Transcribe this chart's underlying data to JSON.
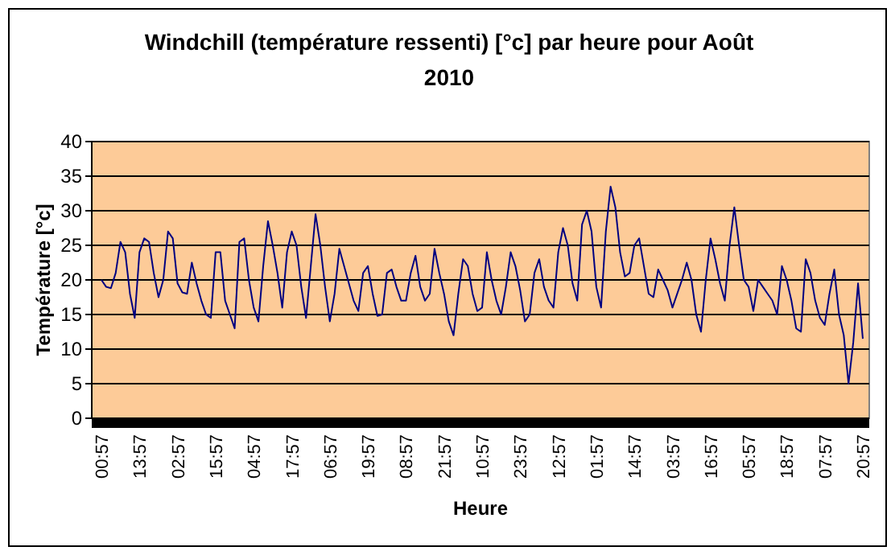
{
  "chart_data": {
    "type": "line",
    "title": "Windchill (température ressenti) [°c] par heure pour Août 2010",
    "xlabel": "Heure",
    "ylabel": "Température [°c]",
    "categories": [
      "00:57",
      null,
      null,
      null,
      null,
      null,
      null,
      null,
      "13:57",
      null,
      null,
      null,
      null,
      null,
      null,
      null,
      "02:57",
      null,
      null,
      null,
      null,
      null,
      null,
      null,
      "15:57",
      null,
      null,
      null,
      null,
      null,
      null,
      null,
      "04:57",
      null,
      null,
      null,
      null,
      null,
      null,
      null,
      "17:57",
      null,
      null,
      null,
      null,
      null,
      null,
      null,
      "06:57",
      null,
      null,
      null,
      null,
      null,
      null,
      null,
      "19:57",
      null,
      null,
      null,
      null,
      null,
      null,
      null,
      "08:57",
      null,
      null,
      null,
      null,
      null,
      null,
      null,
      "21:57",
      null,
      null,
      null,
      null,
      null,
      null,
      null,
      "10:57",
      null,
      null,
      null,
      null,
      null,
      null,
      null,
      "23:57",
      null,
      null,
      null,
      null,
      null,
      null,
      null,
      "12:57",
      null,
      null,
      null,
      null,
      null,
      null,
      null,
      "01:57",
      null,
      null,
      null,
      null,
      null,
      null,
      null,
      "14:57",
      null,
      null,
      null,
      null,
      null,
      null,
      null,
      "03:57",
      null,
      null,
      null,
      null,
      null,
      null,
      null,
      "16:57",
      null,
      null,
      null,
      null,
      null,
      null,
      null,
      "05:57",
      null,
      null,
      null,
      null,
      null,
      null,
      null,
      "18:57",
      null,
      null,
      null,
      null,
      null,
      null,
      null,
      "07:57",
      null,
      null,
      null,
      null,
      null,
      null,
      null,
      "20:57"
    ],
    "series": [
      {
        "color": "#000080",
        "values": [
          20,
          19,
          18.8,
          21,
          25.5,
          24,
          18,
          14.5,
          24,
          26,
          25.5,
          21,
          17.5,
          20,
          27,
          26,
          19.5,
          18.2,
          18,
          22.5,
          19.5,
          17,
          15,
          14.5,
          24,
          24,
          17,
          15,
          13,
          25.5,
          26,
          20,
          16,
          14,
          22,
          28.5,
          25,
          21,
          16,
          24,
          27,
          25,
          19,
          14.5,
          22,
          29.5,
          25,
          19,
          14,
          18,
          24.5,
          22,
          19.5,
          17,
          15.5,
          21,
          22,
          18,
          14.8,
          15,
          21,
          21.5,
          19,
          17,
          17,
          21,
          23.5,
          19,
          17,
          18,
          24.5,
          21,
          18,
          14,
          12,
          18,
          23,
          22,
          18,
          15.5,
          16,
          24,
          20,
          17,
          15,
          19,
          24,
          22,
          18.5,
          14,
          15,
          21,
          23,
          19,
          17,
          16,
          24,
          27.5,
          25,
          19.5,
          17,
          28,
          30,
          27,
          19,
          16,
          27,
          33.5,
          30.5,
          24,
          20.5,
          21,
          25,
          26,
          22,
          18,
          17.5,
          21.5,
          20,
          18.5,
          16,
          18,
          20,
          22.5,
          20,
          15,
          12.5,
          20,
          26,
          23,
          19.5,
          17,
          25,
          30.5,
          25,
          20,
          19,
          15.5,
          20,
          19,
          18,
          17,
          15,
          22,
          20,
          17,
          13,
          12.5,
          23,
          21,
          17,
          14.5,
          13.5,
          18,
          21.5,
          15,
          12,
          5,
          11,
          19.5,
          11.5
        ]
      }
    ],
    "ylim": [
      0,
      40
    ],
    "yticks": [
      0,
      5,
      10,
      15,
      20,
      25,
      30,
      35,
      40
    ],
    "grid": "y",
    "marker": "none",
    "line_style": "solid"
  }
}
